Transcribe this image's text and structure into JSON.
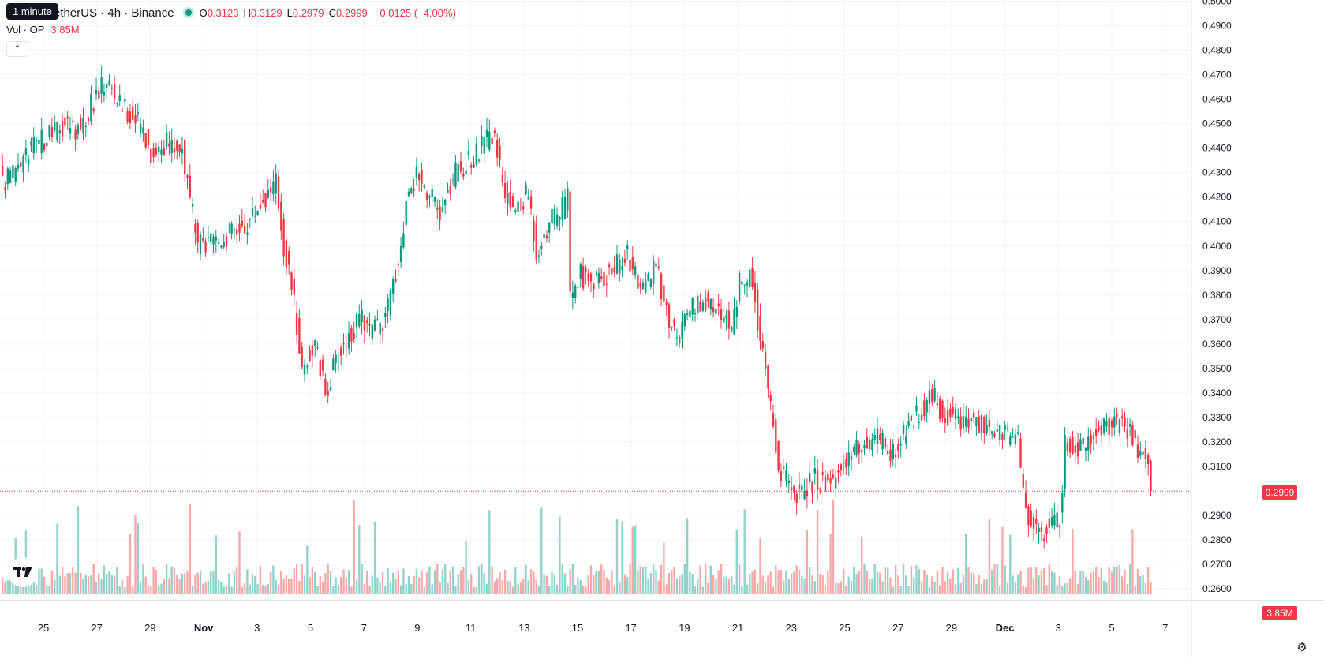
{
  "header": {
    "tooltip": "1 minute",
    "title": "etherUS · 4h · Binance",
    "ohlc": {
      "o_label": "O",
      "o": "0.3123",
      "h_label": "H",
      "h": "0.3129",
      "l_label": "L",
      "l": "0.2979",
      "c_label": "C",
      "c": "0.2999"
    },
    "change": "−0.0125 (−4.00%)",
    "vol_label": "Vol · OP",
    "vol_value": "3.85M",
    "collapse_icon": "chevron-up-icon"
  },
  "badges": {
    "price": "0.2999",
    "volume": "3.85M"
  },
  "colors": {
    "up": "#089981",
    "down": "#f23645",
    "vol_up": "#92d2cc",
    "vol_down": "#f7a9a7",
    "grid": "#f0f3fa"
  },
  "chart_data": {
    "type": "candlestick",
    "symbol": "OP/USDT",
    "interval": "4h",
    "exchange": "Binance",
    "y_ticks": [
      "0.5000",
      "0.4900",
      "0.4800",
      "0.4700",
      "0.4600",
      "0.4500",
      "0.4400",
      "0.4300",
      "0.4200",
      "0.4100",
      "0.4000",
      "0.3900",
      "0.3800",
      "0.3700",
      "0.3600",
      "0.3500",
      "0.3400",
      "0.3300",
      "0.3200",
      "0.3100",
      "0.2900",
      "0.2800",
      "0.2700",
      "0.2600"
    ],
    "ylim": [
      0.2555,
      0.5005
    ],
    "x_ticks": [
      "25",
      "27",
      "29",
      "Nov",
      "3",
      "5",
      "7",
      "9",
      "11",
      "13",
      "15",
      "17",
      "19",
      "21",
      "23",
      "25",
      "27",
      "29",
      "Dec",
      "3",
      "5",
      "7"
    ],
    "last_price": 0.2999,
    "anchors": [
      [
        0,
        0.425
      ],
      [
        6,
        0.432
      ],
      [
        12,
        0.44
      ],
      [
        18,
        0.445
      ],
      [
        24,
        0.45
      ],
      [
        30,
        0.448
      ],
      [
        36,
        0.462
      ],
      [
        40,
        0.468
      ],
      [
        45,
        0.458
      ],
      [
        54,
        0.448
      ],
      [
        57,
        0.438
      ],
      [
        63,
        0.442
      ],
      [
        69,
        0.44
      ],
      [
        71,
        0.425
      ],
      [
        75,
        0.4
      ],
      [
        79,
        0.4
      ],
      [
        87,
        0.405
      ],
      [
        93,
        0.408
      ],
      [
        99,
        0.418
      ],
      [
        105,
        0.426
      ],
      [
        108,
        0.4
      ],
      [
        111,
        0.385
      ],
      [
        115,
        0.35
      ],
      [
        120,
        0.36
      ],
      [
        124,
        0.34
      ],
      [
        127,
        0.35
      ],
      [
        132,
        0.362
      ],
      [
        138,
        0.37
      ],
      [
        141,
        0.365
      ],
      [
        147,
        0.37
      ],
      [
        153,
        0.4
      ],
      [
        156,
        0.425
      ],
      [
        160,
        0.43
      ],
      [
        163,
        0.423
      ],
      [
        168,
        0.412
      ],
      [
        174,
        0.43
      ],
      [
        180,
        0.435
      ],
      [
        185,
        0.442
      ],
      [
        189,
        0.447
      ],
      [
        192,
        0.422
      ],
      [
        197,
        0.415
      ],
      [
        202,
        0.422
      ],
      [
        205,
        0.398
      ],
      [
        210,
        0.41
      ],
      [
        215,
        0.415
      ],
      [
        217,
        0.42
      ],
      [
        218,
        0.38
      ],
      [
        222,
        0.388
      ],
      [
        228,
        0.385
      ],
      [
        234,
        0.39
      ],
      [
        240,
        0.398
      ],
      [
        245,
        0.38
      ],
      [
        251,
        0.392
      ],
      [
        256,
        0.37
      ],
      [
        259,
        0.362
      ],
      [
        265,
        0.374
      ],
      [
        271,
        0.378
      ],
      [
        276,
        0.372
      ],
      [
        280,
        0.368
      ],
      [
        283,
        0.385
      ],
      [
        288,
        0.388
      ],
      [
        291,
        0.36
      ],
      [
        295,
        0.335
      ],
      [
        298,
        0.31
      ],
      [
        302,
        0.303
      ],
      [
        306,
        0.298
      ],
      [
        312,
        0.305
      ],
      [
        318,
        0.303
      ],
      [
        324,
        0.313
      ],
      [
        330,
        0.318
      ],
      [
        336,
        0.322
      ],
      [
        342,
        0.315
      ],
      [
        348,
        0.327
      ],
      [
        354,
        0.335
      ],
      [
        357,
        0.34
      ],
      [
        360,
        0.333
      ],
      [
        366,
        0.33
      ],
      [
        372,
        0.329
      ],
      [
        378,
        0.327
      ],
      [
        384,
        0.323
      ],
      [
        390,
        0.32
      ],
      [
        393,
        0.292
      ],
      [
        396,
        0.287
      ],
      [
        399,
        0.28
      ],
      [
        402,
        0.287
      ],
      [
        406,
        0.29
      ],
      [
        408,
        0.318
      ],
      [
        414,
        0.318
      ],
      [
        420,
        0.325
      ],
      [
        426,
        0.328
      ],
      [
        432,
        0.326
      ],
      [
        435,
        0.321
      ],
      [
        437,
        0.315
      ],
      [
        440,
        0.312
      ],
      [
        441,
        0.2999
      ]
    ]
  }
}
